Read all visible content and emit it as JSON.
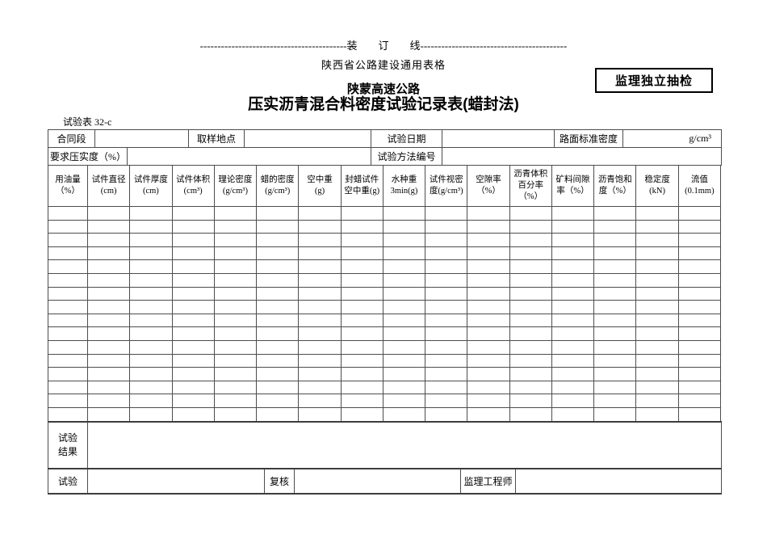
{
  "page": {
    "binding_line": "------------------------------------------装　　订　　线------------------------------------------",
    "form_source": "陕西省公路建设通用表格",
    "stamp": "监理独立抽检",
    "project_title": "陕蒙高速公路",
    "form_title": "压实沥青混合料密度试验记录表(蜡封法)",
    "table_no": "试验表 32-c"
  },
  "info": {
    "contract_label": "合同段",
    "contract_value": "",
    "sampling_label": "取样地点",
    "sampling_value": "",
    "date_label": "试验日期",
    "date_value": "",
    "std_density_label": "路面标准密度",
    "std_density_unit": "g/cm³",
    "compaction_label": "要求压实度（%）",
    "compaction_value": "",
    "method_label": "试验方法编号",
    "method_value": ""
  },
  "grid": {
    "columns": [
      "用油量\n（%）",
      "试件直径\n(cm)",
      "试件厚度\n(cm)",
      "试件体积\n(cm³)",
      "理论密度\n(g/cm³)",
      "蜡的密度\n(g/cm³)",
      "空中重\n(g)",
      "封蜡试件\n空中重(g)",
      "水种重\n3min(g)",
      "试件视密\n度(g/cm³)",
      "空隙率\n（%）",
      "沥青体积\n百分率\n（%）",
      "矿料间隙\n率（%）",
      "沥青饱和\n度（%）",
      "稳定度\n(kN)",
      "流值\n(0.1mm)"
    ],
    "empty_row_count": 16
  },
  "result": {
    "label": "试验\n结果",
    "value": ""
  },
  "signoff": {
    "test_label": "试验",
    "test_value": "",
    "review_label": "复核",
    "review_value": "",
    "supervisor_label": "监理工程师",
    "supervisor_value": ""
  }
}
